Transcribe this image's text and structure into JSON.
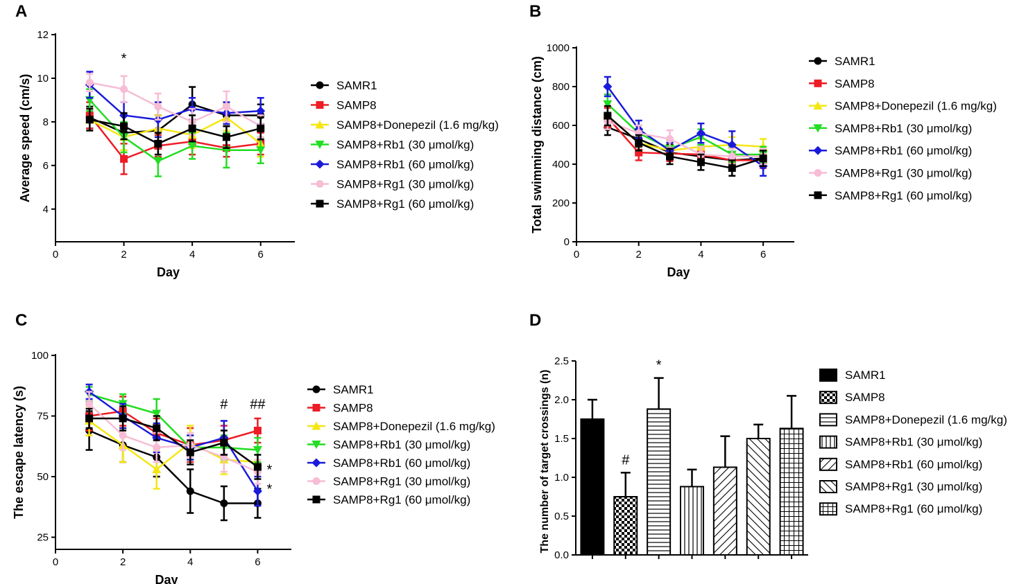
{
  "figure": {
    "panels": [
      {
        "letter": "A"
      },
      {
        "letter": "B"
      },
      {
        "letter": "C"
      },
      {
        "letter": "D"
      }
    ]
  },
  "chart_data": [
    {
      "panel": "A",
      "type": "line",
      "xlabel": "Day",
      "ylabel": "Average speed (cm/s)",
      "xlim": [
        0,
        7
      ],
      "ylim": [
        2.5,
        12
      ],
      "xticks": [
        "0",
        "2",
        "4",
        "6"
      ],
      "yticks": [
        "4",
        "6",
        "8",
        "10",
        "12"
      ],
      "x": [
        1,
        2,
        3,
        4,
        5,
        6
      ],
      "series": [
        {
          "name": "SAMR1",
          "color": "#000000",
          "marker": "circle",
          "values": [
            8.2,
            7.5,
            7.6,
            8.8,
            8.3,
            8.3
          ],
          "errors": [
            0.5,
            0.8,
            0.7,
            0.8,
            0.5,
            0.5
          ]
        },
        {
          "name": "SAMP8",
          "color": "#ee1c25",
          "marker": "square",
          "values": [
            8.3,
            6.3,
            6.9,
            7.1,
            6.8,
            7.0
          ],
          "errors": [
            0.6,
            0.7,
            0.5,
            0.6,
            0.4,
            0.5
          ]
        },
        {
          "name": "SAMP8+Donepezil (1.6 mg/kg)",
          "color": "#f5e612",
          "marker": "triangle-up",
          "values": [
            8.1,
            7.3,
            7.7,
            7.4,
            8.2,
            7.0
          ],
          "errors": [
            0.5,
            0.6,
            0.6,
            0.6,
            0.6,
            0.6
          ]
        },
        {
          "name": "SAMP8+Rb1 (30 μmol/kg)",
          "color": "#22dd22",
          "marker": "triangle-down",
          "values": [
            9.0,
            7.3,
            6.2,
            6.9,
            6.7,
            6.7
          ],
          "errors": [
            0.5,
            0.7,
            0.7,
            0.6,
            0.8,
            0.6
          ]
        },
        {
          "name": "SAMP8+Rb1 (60 μmol/kg)",
          "color": "#1a1adc",
          "marker": "diamond",
          "values": [
            9.7,
            8.3,
            8.1,
            8.6,
            8.4,
            8.5
          ],
          "errors": [
            0.6,
            0.6,
            0.8,
            0.5,
            0.5,
            0.6
          ]
        },
        {
          "name": "SAMP8+Rg1 (30 μmol/kg)",
          "color": "#f7bcd6",
          "marker": "circle",
          "values": [
            9.8,
            9.5,
            8.7,
            8.0,
            8.7,
            7.8
          ],
          "errors": [
            0.4,
            0.6,
            0.6,
            0.6,
            0.7,
            0.5
          ]
        },
        {
          "name": "SAMP8+Rg1 (60 μmol/kg)",
          "color": "#000000",
          "marker": "square",
          "values": [
            8.1,
            7.8,
            7.0,
            7.7,
            7.3,
            7.7
          ],
          "errors": [
            0.5,
            0.6,
            0.5,
            0.6,
            0.5,
            0.5
          ]
        }
      ],
      "annotations": [
        {
          "text": "*",
          "x": 2,
          "y": 10.7
        }
      ],
      "legend_position": "right"
    },
    {
      "panel": "B",
      "type": "line",
      "xlabel": "Day",
      "ylabel": "Total swimming distance (cm)",
      "xlim": [
        0,
        7
      ],
      "ylim": [
        0,
        1000
      ],
      "xticks": [
        "0",
        "2",
        "4",
        "6"
      ],
      "yticks": [
        "0",
        "200",
        "400",
        "600",
        "800",
        "1000"
      ],
      "x": [
        1,
        2,
        3,
        4,
        5,
        6
      ],
      "series": [
        {
          "name": "SAMR1",
          "color": "#000000",
          "marker": "circle",
          "values": [
            590,
            530,
            460,
            440,
            420,
            430
          ],
          "errors": [
            40,
            40,
            40,
            40,
            40,
            40
          ]
        },
        {
          "name": "SAMP8",
          "color": "#ee1c25",
          "marker": "square",
          "values": [
            640,
            460,
            455,
            450,
            420,
            420
          ],
          "errors": [
            50,
            40,
            40,
            40,
            40,
            40
          ]
        },
        {
          "name": "SAMP8+Donepezil (1.6 mg/kg)",
          "color": "#f5e612",
          "marker": "triangle-up",
          "values": [
            650,
            510,
            470,
            490,
            500,
            490
          ],
          "errors": [
            50,
            40,
            40,
            40,
            40,
            40
          ]
        },
        {
          "name": "SAMP8+Rb1 (30 μmol/kg)",
          "color": "#22dd22",
          "marker": "triangle-down",
          "values": [
            710,
            560,
            480,
            540,
            450,
            450
          ],
          "errors": [
            50,
            40,
            40,
            40,
            40,
            40
          ]
        },
        {
          "name": "SAMP8+Rb1 (60 μmol/kg)",
          "color": "#1a1adc",
          "marker": "diamond",
          "values": [
            800,
            580,
            470,
            560,
            500,
            390
          ],
          "errors": [
            50,
            45,
            40,
            50,
            70,
            50
          ]
        },
        {
          "name": "SAMP8+Rg1 (30 μmol/kg)",
          "color": "#f7bcd6",
          "marker": "circle",
          "values": [
            620,
            560,
            530,
            450,
            440,
            440
          ],
          "errors": [
            40,
            40,
            45,
            40,
            40,
            40
          ]
        },
        {
          "name": "SAMP8+Rg1 (60 μmol/kg)",
          "color": "#000000",
          "marker": "square",
          "values": [
            650,
            510,
            440,
            410,
            380,
            430
          ],
          "errors": [
            50,
            40,
            40,
            40,
            40,
            40
          ]
        }
      ],
      "legend_position": "right"
    },
    {
      "panel": "C",
      "type": "line",
      "xlabel": "Day",
      "ylabel": "The escape latency (s)",
      "xlim": [
        0,
        7
      ],
      "ylim": [
        20,
        100
      ],
      "xticks": [
        "0",
        "2",
        "4",
        "6"
      ],
      "yticks": [
        "25",
        "50",
        "75",
        "100"
      ],
      "x": [
        1,
        2,
        3,
        4,
        5,
        6
      ],
      "series": [
        {
          "name": "SAMR1",
          "color": "#000000",
          "marker": "circle",
          "values": [
            69,
            63,
            58,
            44,
            39,
            39
          ],
          "errors": [
            8,
            7,
            8,
            9,
            7,
            6
          ]
        },
        {
          "name": "SAMP8",
          "color": "#ee1c25",
          "marker": "square",
          "values": [
            75,
            77,
            68,
            63,
            65,
            69
          ],
          "errors": [
            6,
            6,
            6,
            7,
            6,
            5
          ]
        },
        {
          "name": "SAMP8+Donepezil (1.6 mg/kg)",
          "color": "#f5e612",
          "marker": "triangle-up",
          "values": [
            73,
            63,
            53,
            64,
            57,
            56
          ],
          "errors": [
            6,
            7,
            8,
            7,
            6,
            6
          ]
        },
        {
          "name": "SAMP8+Rb1 (30 μmol/kg)",
          "color": "#22dd22",
          "marker": "triangle-down",
          "values": [
            84,
            80,
            76,
            62,
            62,
            61
          ],
          "errors": [
            3,
            4,
            6,
            5,
            5,
            5
          ]
        },
        {
          "name": "SAMP8+Rb1 (60 μmol/kg)",
          "color": "#1a1adc",
          "marker": "diamond",
          "values": [
            85,
            75,
            66,
            62,
            66,
            44
          ],
          "errors": [
            3,
            5,
            6,
            5,
            7,
            6
          ]
        },
        {
          "name": "SAMP8+Rg1 (30 μmol/kg)",
          "color": "#f7bcd6",
          "marker": "circle",
          "values": [
            80,
            67,
            62,
            63,
            58,
            52
          ],
          "errors": [
            5,
            6,
            6,
            5,
            6,
            5
          ]
        },
        {
          "name": "SAMP8+Rg1 (60 μmol/kg)",
          "color": "#000000",
          "marker": "square",
          "values": [
            74,
            74,
            70,
            60,
            64,
            54
          ],
          "errors": [
            4,
            5,
            5,
            5,
            5,
            5
          ]
        }
      ],
      "annotations": [
        {
          "text": "#",
          "x": 5,
          "y": 78
        },
        {
          "text": "##",
          "x": 6,
          "y": 78
        },
        {
          "text": "*",
          "x": 6.35,
          "y": 51
        },
        {
          "text": "*",
          "x": 6.35,
          "y": 43
        }
      ],
      "legend_position": "right"
    },
    {
      "panel": "D",
      "type": "bar",
      "xlabel": "",
      "ylabel": "The number of target crossings (n)",
      "ylim": [
        0,
        2.5
      ],
      "yticks": [
        "0.0",
        "0.5",
        "1.0",
        "1.5",
        "2.0",
        "2.5"
      ],
      "categories": [
        "SAMR1",
        "SAMP8",
        "SAMP8+Donepezil (1.6 mg/kg)",
        "SAMP8+Rb1 (30 μmol/kg)",
        "SAMP8+Rb1 (60 μmol/kg)",
        "SAMP8+Rg1 (30 μmol/kg)",
        "SAMP8+Rg1 (60 μmol/kg)"
      ],
      "values": [
        1.75,
        0.75,
        1.88,
        0.88,
        1.13,
        1.5,
        1.63
      ],
      "errors": [
        0.25,
        0.31,
        0.4,
        0.22,
        0.4,
        0.18,
        0.42
      ],
      "patterns": [
        "solid",
        "checker",
        "horizontal",
        "vertical",
        "diagonal-right",
        "diagonal-left",
        "grid"
      ],
      "bar_labels": [
        "",
        "#",
        "*",
        "",
        "",
        "",
        ""
      ],
      "legend_position": "right"
    }
  ]
}
